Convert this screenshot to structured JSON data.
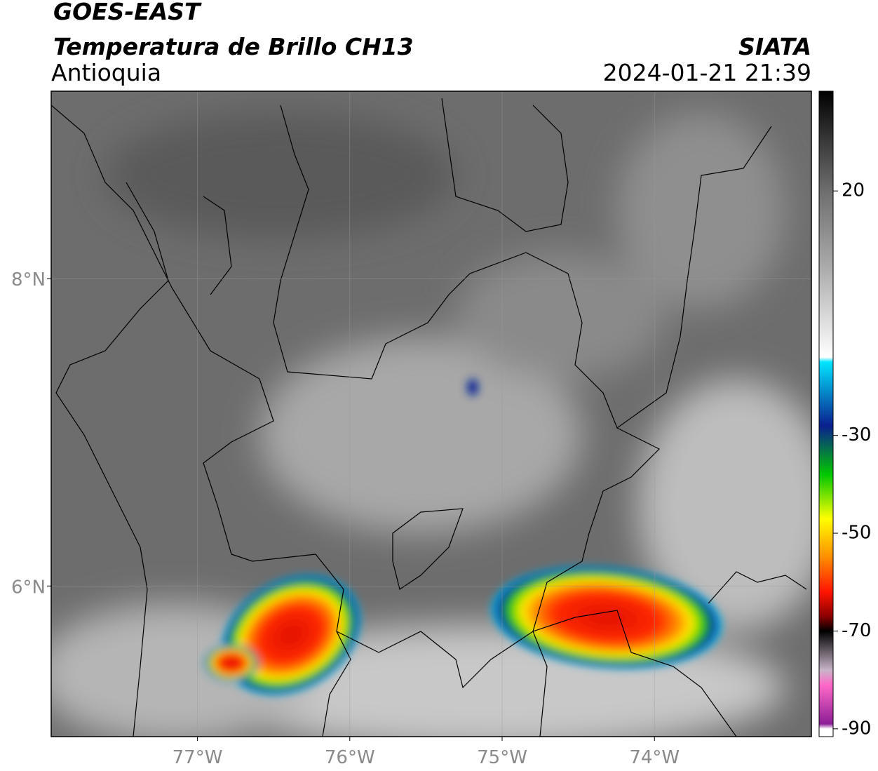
{
  "map": {
    "title_1": "GOES-EAST",
    "title_2": "Temperatura de Brillo CH13",
    "region": "Antioquia",
    "source": "SIATA",
    "datetime": "2024-01-21 21:39",
    "xlim": [
      -77.96,
      -72.97
    ],
    "ylim": [
      5.02,
      9.22
    ],
    "xticks": [
      {
        "value": -77,
        "label": "77°W"
      },
      {
        "value": -76,
        "label": "76°W"
      },
      {
        "value": -75,
        "label": "75°W"
      },
      {
        "value": -74,
        "label": "74°W"
      }
    ],
    "yticks": [
      {
        "value": 6,
        "label": "6°N"
      },
      {
        "value": 8,
        "label": "8°N"
      }
    ],
    "grid": true,
    "colorbar": {
      "lim": [
        -91.6,
        40.4
      ],
      "ticks": [
        20,
        -30,
        -50,
        -70,
        -90
      ],
      "colors": [
        {
          "value": 40.4,
          "color": "#000000"
        },
        {
          "value": 30,
          "color": "#3a3a3a"
        },
        {
          "value": 20,
          "color": "#6e6e6e"
        },
        {
          "value": 5,
          "color": "#a8a8a8"
        },
        {
          "value": -14,
          "color": "#ffffff"
        },
        {
          "value": -15,
          "color": "#00e5ff"
        },
        {
          "value": -28,
          "color": "#0a1f8f"
        },
        {
          "value": -38,
          "color": "#00c800"
        },
        {
          "value": -47,
          "color": "#ffff00"
        },
        {
          "value": -55,
          "color": "#ff8c00"
        },
        {
          "value": -62,
          "color": "#ff1400"
        },
        {
          "value": -67,
          "color": "#8b0000"
        },
        {
          "value": -70,
          "color": "#000000"
        },
        {
          "value": -78,
          "color": "#c8b4c8"
        },
        {
          "value": -81,
          "color": "#ff69c8"
        },
        {
          "value": -89,
          "color": "#8c1e96"
        },
        {
          "value": -90,
          "color": "#ffffff"
        },
        {
          "value": -91.6,
          "color": "#ffffff"
        }
      ]
    }
  }
}
